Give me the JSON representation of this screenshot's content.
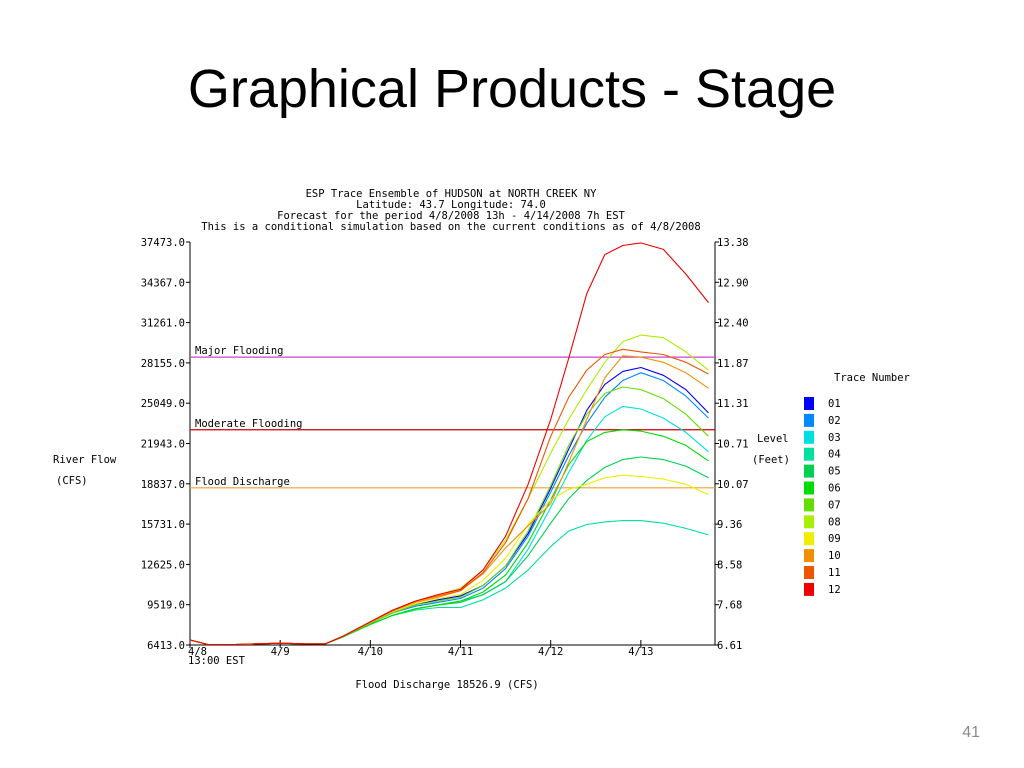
{
  "slide": {
    "title": "Graphical Products - Stage",
    "page_number": "41"
  },
  "chart_data": {
    "type": "line",
    "title_lines": [
      "ESP Trace Ensemble of HUDSON at NORTH CREEK NY",
      "Latitude: 43.7     Longitude:  74.0",
      "Forecast for the period 4/8/2008 13h - 4/14/2008 7h EST",
      "This is a conditional simulation based on the current conditions as of 4/8/2008"
    ],
    "ylabel_left": [
      "River Flow",
      "(CFS)"
    ],
    "ylabel_right": [
      "Level",
      "(Feet)"
    ],
    "xlabel": "Flood Discharge 18526.9 (CFS)",
    "x_origin_label": "13:00 EST",
    "ylim": [
      6413.0,
      37473.0
    ],
    "y_ticks_left": [
      "37473.0",
      "34367.0",
      "31261.0",
      "28155.0",
      "25049.0",
      "21943.0",
      "18837.0",
      "15731.0",
      "12625.0",
      "9519.0",
      "6413.0"
    ],
    "y_ticks_right": [
      "13.38",
      "12.90",
      "12.40",
      "11.87",
      "11.31",
      "10.71",
      "10.07",
      "9.36",
      "8.58",
      "7.68",
      "6.61"
    ],
    "x_ticks": [
      "4/8",
      "4/9",
      "4/10",
      "4/11",
      "4/12",
      "4/13"
    ],
    "x_tick_values": [
      0,
      1,
      2,
      3,
      4,
      5
    ],
    "xlim": [
      0,
      5.8
    ],
    "grid": false,
    "legend": {
      "title": "Trace Number",
      "position": "right"
    },
    "thresholds": [
      {
        "label": "Major Flooding",
        "value": 28600,
        "color": "#cc44cc"
      },
      {
        "label": "Moderate Flooding",
        "value": 23000,
        "color": "#cc0000"
      },
      {
        "label": "Flood Discharge",
        "value": 18526.9,
        "color": "#f0a030"
      }
    ],
    "x": [
      0,
      0.2,
      0.5,
      1.0,
      1.3,
      1.5,
      1.7,
      2.0,
      2.25,
      2.5,
      2.75,
      3.0,
      3.25,
      3.5,
      3.75,
      4.0,
      4.2,
      4.4,
      4.6,
      4.8,
      5.0,
      5.25,
      5.5,
      5.75
    ],
    "series": [
      {
        "name": "01",
        "color": "#0000ff",
        "values": [
          6800,
          6450,
          6450,
          6550,
          6500,
          6500,
          7100,
          8100,
          8900,
          9500,
          9900,
          10200,
          11000,
          12500,
          15000,
          18500,
          21500,
          24500,
          26500,
          27500,
          27800,
          27200,
          26100,
          24300
        ]
      },
      {
        "name": "02",
        "color": "#0088ff",
        "values": [
          6800,
          6450,
          6450,
          6550,
          6500,
          6500,
          7100,
          8100,
          8900,
          9400,
          9700,
          10000,
          10800,
          12300,
          14800,
          18200,
          21000,
          23500,
          25500,
          26800,
          27400,
          26800,
          25600,
          23900
        ]
      },
      {
        "name": "03",
        "color": "#00e0e0",
        "values": [
          6800,
          6450,
          6450,
          6550,
          6500,
          6500,
          7050,
          8000,
          8700,
          9200,
          9500,
          9800,
          10300,
          11300,
          13800,
          17000,
          19700,
          22200,
          24000,
          24800,
          24600,
          23900,
          22800,
          21300
        ]
      },
      {
        "name": "04",
        "color": "#00e0a0",
        "values": [
          6800,
          6450,
          6450,
          6550,
          6500,
          6500,
          7050,
          8000,
          8700,
          9100,
          9300,
          9300,
          9900,
          10800,
          12200,
          14000,
          15200,
          15700,
          15900,
          16000,
          16000,
          15800,
          15400,
          14900
        ]
      },
      {
        "name": "05",
        "color": "#00d050",
        "values": [
          6800,
          6450,
          6450,
          6550,
          6500,
          6500,
          7050,
          8000,
          8700,
          9200,
          9500,
          9700,
          10300,
          11300,
          13300,
          15800,
          17700,
          19100,
          20100,
          20700,
          20900,
          20700,
          20200,
          19300
        ]
      },
      {
        "name": "06",
        "color": "#00dd00",
        "values": [
          6800,
          6450,
          6450,
          6550,
          6500,
          6500,
          7050,
          8000,
          8700,
          9200,
          9500,
          9800,
          10500,
          11800,
          14300,
          17600,
          20300,
          22100,
          22800,
          23000,
          22900,
          22500,
          21800,
          20600
        ]
      },
      {
        "name": "07",
        "color": "#66dd00",
        "values": [
          6800,
          6450,
          6450,
          6550,
          6500,
          6500,
          7100,
          8100,
          8900,
          9500,
          9800,
          10100,
          11000,
          12500,
          15200,
          18700,
          21800,
          24200,
          25800,
          26300,
          26100,
          25400,
          24200,
          22500
        ]
      },
      {
        "name": "08",
        "color": "#aaee00",
        "values": [
          6800,
          6450,
          6450,
          6550,
          6500,
          6500,
          7100,
          8200,
          9100,
          9800,
          10300,
          10800,
          12200,
          14500,
          17700,
          21200,
          23800,
          26100,
          28200,
          29800,
          30300,
          30100,
          29000,
          27600
        ]
      },
      {
        "name": "09",
        "color": "#eeee00",
        "values": [
          6800,
          6450,
          6450,
          6550,
          6500,
          6500,
          7100,
          8150,
          9000,
          9600,
          10000,
          10300,
          11400,
          13100,
          15700,
          17600,
          18400,
          18800,
          19300,
          19500,
          19400,
          19200,
          18800,
          18000
        ]
      },
      {
        "name": "10",
        "color": "#f09000",
        "values": [
          6800,
          6450,
          6450,
          6550,
          6500,
          6500,
          7100,
          8150,
          9050,
          9700,
          10100,
          10600,
          11900,
          13900,
          15600,
          17300,
          20500,
          23800,
          27000,
          28700,
          28600,
          28200,
          27400,
          26200
        ]
      },
      {
        "name": "11",
        "color": "#ee5500",
        "values": [
          6800,
          6450,
          6450,
          6550,
          6500,
          6500,
          7100,
          8200,
          9100,
          9800,
          10200,
          10600,
          12000,
          14300,
          17700,
          22500,
          25500,
          27600,
          28800,
          29200,
          29000,
          28800,
          28200,
          27300
        ]
      },
      {
        "name": "12",
        "color": "#ee0000",
        "values": [
          6800,
          6450,
          6450,
          6550,
          6500,
          6500,
          7100,
          8200,
          9100,
          9800,
          10300,
          10700,
          12200,
          14800,
          18800,
          23800,
          28500,
          33500,
          36500,
          37200,
          37400,
          36900,
          35000,
          32800
        ]
      }
    ]
  }
}
